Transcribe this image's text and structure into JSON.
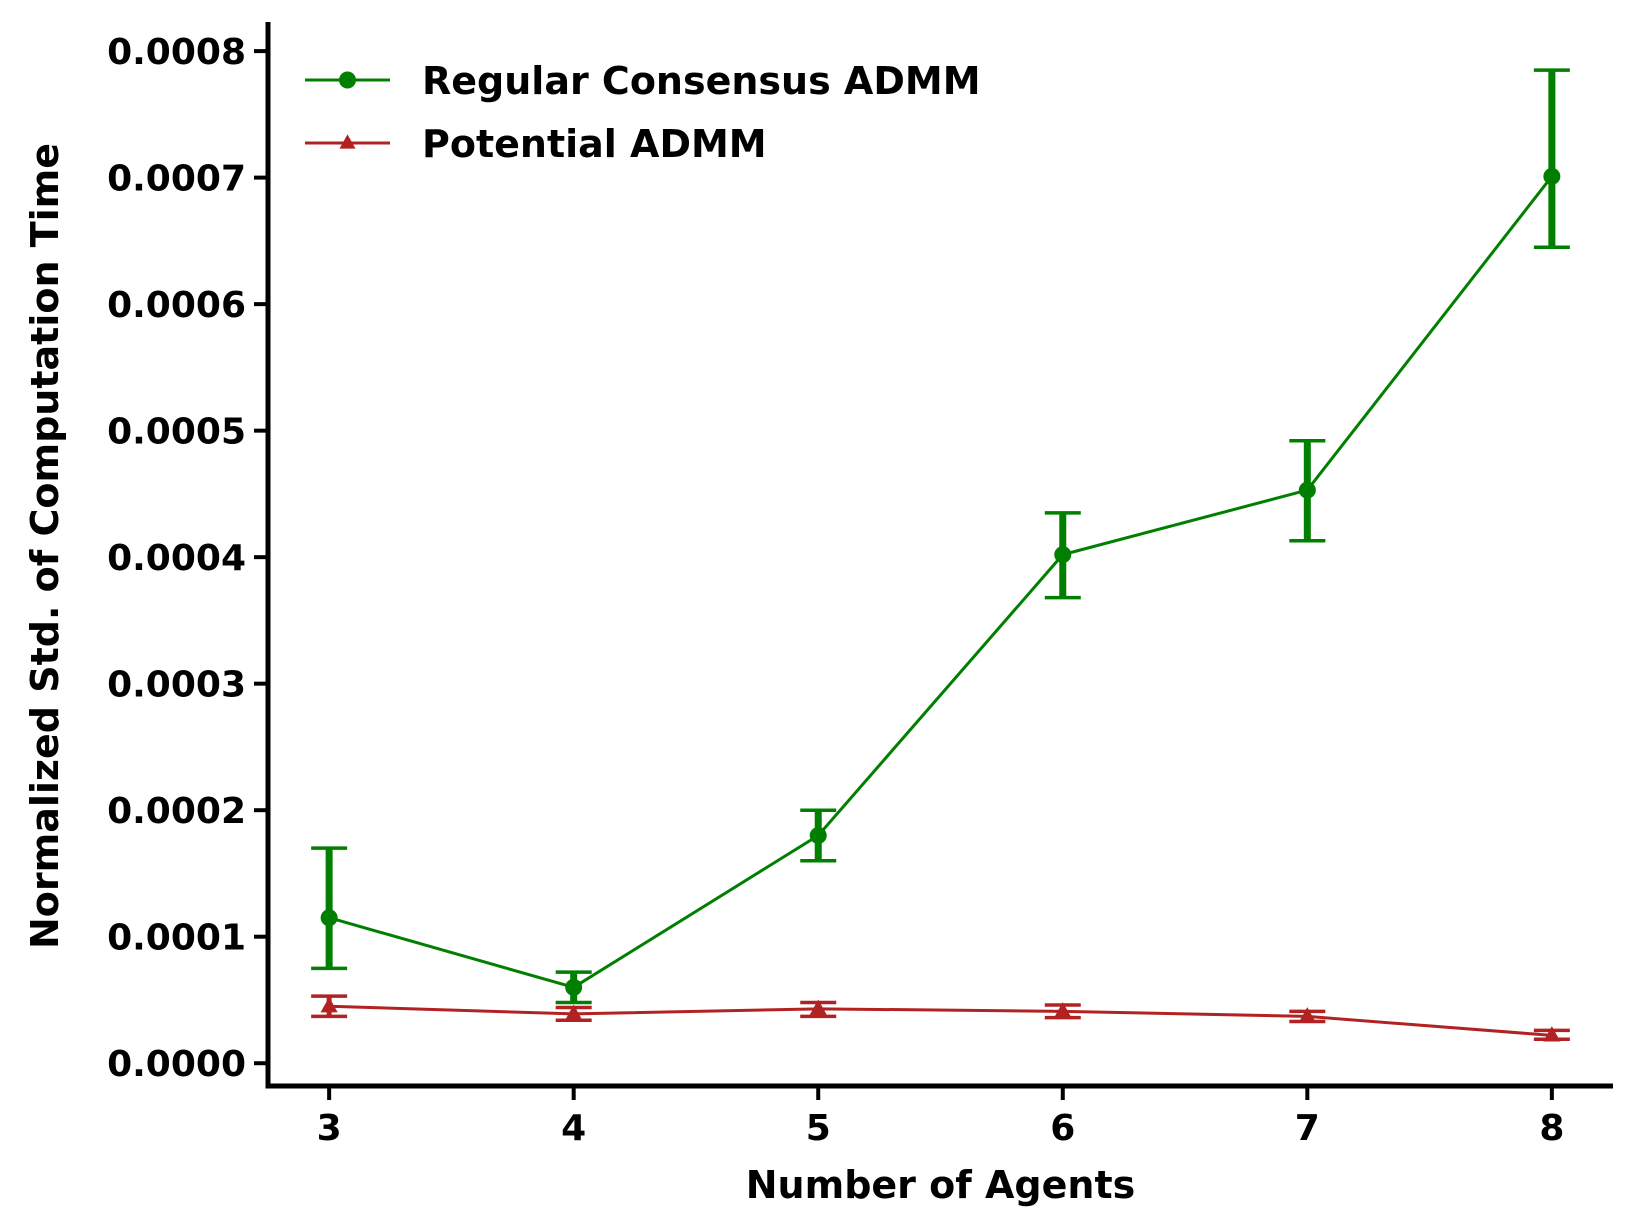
{
  "chart_data": {
    "type": "line",
    "title": "",
    "xlabel": "Number of Agents",
    "ylabel": "Normalized Std. of Computation Time",
    "x": [
      3,
      4,
      5,
      6,
      7,
      8
    ],
    "x_ticks": [
      "3",
      "4",
      "5",
      "6",
      "7",
      "8"
    ],
    "y_ticks": [
      "0.0000",
      "0.0001",
      "0.0002",
      "0.0003",
      "0.0004",
      "0.0005",
      "0.0006",
      "0.0007",
      "0.0008"
    ],
    "xlim": [
      2.75,
      8.25
    ],
    "ylim": [
      -1.8e-05,
      0.000823
    ],
    "grid": false,
    "legend_position": "top-left",
    "series": [
      {
        "name": "Regular Consensus ADMM",
        "color": "#007f00",
        "marker": "circle",
        "values": [
          0.000115,
          6e-05,
          0.00018,
          0.000402,
          0.000453,
          0.000701
        ],
        "err_low": [
          7.5e-05,
          4.8e-05,
          0.00016,
          0.000368,
          0.000413,
          0.000645
        ],
        "err_high": [
          0.00017,
          7.2e-05,
          0.0002,
          0.000435,
          0.000492,
          0.000785
        ]
      },
      {
        "name": "Potential ADMM",
        "color": "#b22222",
        "marker": "triangle",
        "values": [
          4.5e-05,
          3.9e-05,
          4.3e-05,
          4.1e-05,
          3.7e-05,
          2.2e-05
        ],
        "err_low": [
          3.7e-05,
          3.4e-05,
          3.7e-05,
          3.6e-05,
          3.3e-05,
          1.9e-05
        ],
        "err_high": [
          5.3e-05,
          4.4e-05,
          4.8e-05,
          4.6e-05,
          4.1e-05,
          2.6e-05
        ]
      }
    ]
  }
}
